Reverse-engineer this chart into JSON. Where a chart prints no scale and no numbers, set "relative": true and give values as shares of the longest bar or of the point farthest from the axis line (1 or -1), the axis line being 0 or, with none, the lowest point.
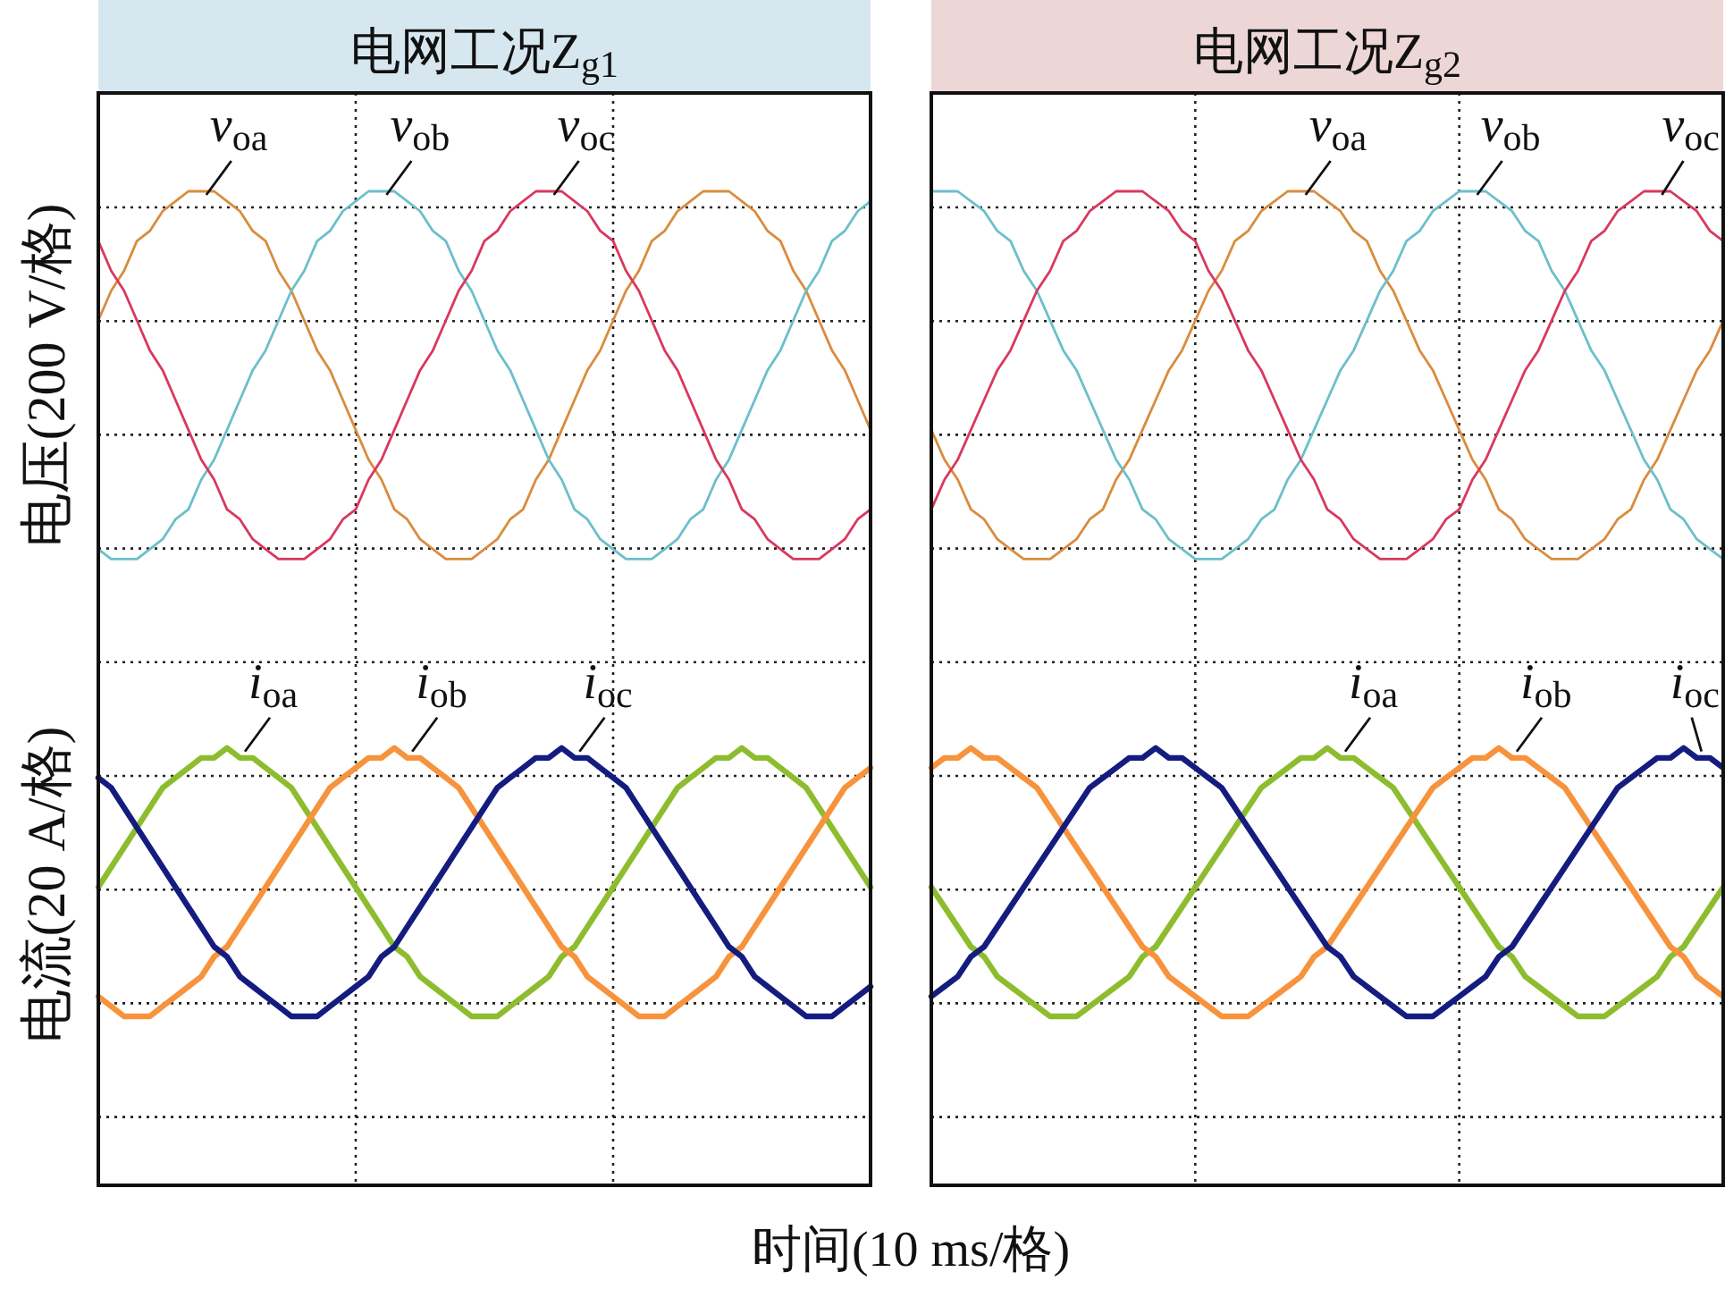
{
  "chart_data": [
    {
      "type": "line",
      "title": "电网工况Z$_{g1}$",
      "ylabel": "电压(200 V/格)",
      "xlabel": "时间(10 ms/格)",
      "annotations": [
        "电流(20 A/格)"
      ],
      "relative": true,
      "grid": true,
      "categories": [
        null,
        null,
        null,
        null,
        null,
        null,
        null,
        null,
        null,
        null,
        null,
        null,
        null,
        null,
        null,
        null,
        null,
        null,
        null,
        null,
        null,
        null,
        null,
        null,
        null,
        null,
        null,
        null,
        null,
        null,
        null,
        null,
        null,
        null,
        null,
        null,
        null,
        null,
        null,
        null,
        null,
        null,
        null,
        null,
        null,
        null,
        null,
        null,
        null,
        null,
        null,
        null,
        null,
        null,
        null,
        null,
        null,
        null,
        null,
        null,
        null
      ],
      "series": [
        {
          "name": "*v*$_{oa}$",
          "color": "#d98c3e",
          "values": [
            0.87,
            0.9,
            0.92,
            0.95,
            0.96,
            0.98,
            0.99,
            1,
            1,
            1,
            0.99,
            0.98,
            0.96,
            0.95,
            0.92,
            0.9,
            0.87,
            0.84,
            0.82,
            0.79,
            0.76,
            0.73,
            0.71,
            0.68,
            0.67,
            0.65,
            0.64,
            0.63,
            0.63,
            0.63,
            0.64,
            0.65,
            0.67,
            0.68,
            0.71,
            0.73,
            0.76,
            0.79,
            0.82,
            0.84,
            0.87,
            0.9,
            0.92,
            0.95,
            0.96,
            0.98,
            0.99,
            1,
            1,
            1,
            0.99,
            0.98,
            0.96,
            0.95,
            0.92,
            0.9,
            0.87,
            0.84,
            0.82,
            0.79,
            0.76
          ]
        },
        {
          "name": "*v*$_{ob}$",
          "color": "#6cbfcb",
          "values": [
            0.64,
            0.63,
            0.63,
            0.63,
            0.64,
            0.65,
            0.67,
            0.68,
            0.71,
            0.73,
            0.76,
            0.79,
            0.82,
            0.84,
            0.87,
            0.9,
            0.92,
            0.95,
            0.96,
            0.98,
            0.99,
            1,
            1,
            1,
            0.99,
            0.98,
            0.96,
            0.95,
            0.92,
            0.9,
            0.87,
            0.84,
            0.82,
            0.79,
            0.76,
            0.73,
            0.71,
            0.68,
            0.67,
            0.65,
            0.64,
            0.63,
            0.63,
            0.63,
            0.64,
            0.65,
            0.67,
            0.68,
            0.71,
            0.73,
            0.76,
            0.79,
            0.82,
            0.84,
            0.87,
            0.9,
            0.92,
            0.95,
            0.96,
            0.98,
            0.99
          ]
        },
        {
          "name": "*v*$_{oc}$",
          "color": "#d9385f",
          "values": [
            0.95,
            0.92,
            0.9,
            0.87,
            0.84,
            0.82,
            0.79,
            0.76,
            0.73,
            0.71,
            0.68,
            0.67,
            0.65,
            0.64,
            0.63,
            0.63,
            0.63,
            0.64,
            0.65,
            0.67,
            0.68,
            0.71,
            0.73,
            0.76,
            0.79,
            0.82,
            0.84,
            0.87,
            0.9,
            0.92,
            0.95,
            0.96,
            0.98,
            0.99,
            1,
            1,
            1,
            0.99,
            0.98,
            0.96,
            0.95,
            0.92,
            0.9,
            0.87,
            0.84,
            0.82,
            0.79,
            0.76,
            0.73,
            0.71,
            0.68,
            0.67,
            0.65,
            0.64,
            0.63,
            0.63,
            0.63,
            0.64,
            0.65,
            0.67,
            0.68
          ]
        },
        {
          "name": "*i*$_{oa}$",
          "color": "#8dbd2e",
          "values": [
            0.3,
            0.32,
            0.34,
            0.36,
            0.38,
            0.4,
            0.41,
            0.42,
            0.43,
            0.43,
            0.44,
            0.43,
            0.43,
            0.42,
            0.41,
            0.4,
            0.38,
            0.36,
            0.34,
            0.32,
            0.3,
            0.28,
            0.26,
            0.24,
            0.23,
            0.21,
            0.2,
            0.19,
            0.18,
            0.17,
            0.17,
            0.17,
            0.18,
            0.19,
            0.2,
            0.21,
            0.23,
            0.24,
            0.26,
            0.28,
            0.3,
            0.32,
            0.34,
            0.36,
            0.38,
            0.4,
            0.41,
            0.42,
            0.43,
            0.43,
            0.44,
            0.43,
            0.43,
            0.42,
            0.41,
            0.4,
            0.38,
            0.36,
            0.34,
            0.32,
            0.3
          ]
        },
        {
          "name": "*i*$_{ob}$",
          "color": "#f7933c",
          "values": [
            0.19,
            0.18,
            0.17,
            0.17,
            0.17,
            0.18,
            0.19,
            0.2,
            0.21,
            0.23,
            0.24,
            0.26,
            0.28,
            0.3,
            0.32,
            0.34,
            0.36,
            0.38,
            0.4,
            0.41,
            0.42,
            0.43,
            0.43,
            0.44,
            0.43,
            0.43,
            0.42,
            0.41,
            0.4,
            0.38,
            0.36,
            0.34,
            0.32,
            0.3,
            0.28,
            0.26,
            0.24,
            0.23,
            0.21,
            0.2,
            0.19,
            0.18,
            0.17,
            0.17,
            0.17,
            0.18,
            0.19,
            0.2,
            0.21,
            0.23,
            0.24,
            0.26,
            0.28,
            0.3,
            0.32,
            0.34,
            0.36,
            0.38,
            0.4,
            0.41,
            0.42
          ]
        },
        {
          "name": "*i*$_{oc}$",
          "color": "#151c80",
          "values": [
            0.41,
            0.4,
            0.38,
            0.36,
            0.34,
            0.32,
            0.3,
            0.28,
            0.26,
            0.24,
            0.23,
            0.21,
            0.2,
            0.19,
            0.18,
            0.17,
            0.17,
            0.17,
            0.18,
            0.19,
            0.2,
            0.21,
            0.23,
            0.24,
            0.26,
            0.28,
            0.3,
            0.32,
            0.34,
            0.36,
            0.38,
            0.4,
            0.41,
            0.42,
            0.43,
            0.43,
            0.44,
            0.43,
            0.43,
            0.42,
            0.41,
            0.4,
            0.38,
            0.36,
            0.34,
            0.32,
            0.3,
            0.28,
            0.26,
            0.24,
            0.23,
            0.21,
            0.2,
            0.19,
            0.18,
            0.17,
            0.17,
            0.17,
            0.18,
            0.19,
            0.2
          ]
        }
      ]
    },
    {
      "type": "line",
      "title": "电网工况Z$_{g2}$",
      "relative": true,
      "grid": true,
      "categories": [
        null,
        null,
        null,
        null,
        null,
        null,
        null,
        null,
        null,
        null,
        null,
        null,
        null,
        null,
        null,
        null,
        null,
        null,
        null,
        null,
        null,
        null,
        null,
        null,
        null,
        null,
        null,
        null,
        null,
        null,
        null,
        null,
        null,
        null,
        null,
        null,
        null,
        null,
        null,
        null,
        null,
        null,
        null,
        null,
        null,
        null,
        null,
        null,
        null,
        null,
        null,
        null,
        null,
        null,
        null,
        null,
        null,
        null,
        null,
        null,
        null
      ],
      "series": [
        {
          "name": "*v*$_{oa}$",
          "color": "#d98c3e",
          "values": [
            0.76,
            0.73,
            0.71,
            0.68,
            0.67,
            0.65,
            0.64,
            0.63,
            0.63,
            0.63,
            0.64,
            0.65,
            0.67,
            0.68,
            0.71,
            0.73,
            0.76,
            0.79,
            0.82,
            0.84,
            0.87,
            0.9,
            0.92,
            0.95,
            0.96,
            0.98,
            0.99,
            1,
            1,
            1,
            0.99,
            0.98,
            0.96,
            0.95,
            0.92,
            0.9,
            0.87,
            0.84,
            0.82,
            0.79,
            0.76,
            0.73,
            0.71,
            0.68,
            0.67,
            0.65,
            0.64,
            0.63,
            0.63,
            0.63,
            0.64,
            0.65,
            0.67,
            0.68,
            0.71,
            0.73,
            0.76,
            0.79,
            0.82,
            0.84,
            0.87
          ]
        },
        {
          "name": "*v*$_{ob}$",
          "color": "#6cbfcb",
          "values": [
            1,
            1,
            1,
            0.99,
            0.98,
            0.96,
            0.95,
            0.92,
            0.9,
            0.87,
            0.84,
            0.82,
            0.79,
            0.76,
            0.73,
            0.71,
            0.68,
            0.67,
            0.65,
            0.64,
            0.63,
            0.63,
            0.63,
            0.64,
            0.65,
            0.67,
            0.68,
            0.71,
            0.73,
            0.76,
            0.79,
            0.82,
            0.84,
            0.87,
            0.9,
            0.92,
            0.95,
            0.96,
            0.98,
            0.99,
            1,
            1,
            1,
            0.99,
            0.98,
            0.96,
            0.95,
            0.92,
            0.9,
            0.87,
            0.84,
            0.82,
            0.79,
            0.76,
            0.73,
            0.71,
            0.68,
            0.67,
            0.65,
            0.64,
            0.63
          ]
        },
        {
          "name": "*v*$_{oc}$",
          "color": "#d9385f",
          "values": [
            0.68,
            0.71,
            0.73,
            0.76,
            0.79,
            0.82,
            0.84,
            0.87,
            0.9,
            0.92,
            0.95,
            0.96,
            0.98,
            0.99,
            1,
            1,
            1,
            0.99,
            0.98,
            0.96,
            0.95,
            0.92,
            0.9,
            0.87,
            0.84,
            0.82,
            0.79,
            0.76,
            0.73,
            0.71,
            0.68,
            0.67,
            0.65,
            0.64,
            0.63,
            0.63,
            0.63,
            0.64,
            0.65,
            0.67,
            0.68,
            0.71,
            0.73,
            0.76,
            0.79,
            0.82,
            0.84,
            0.87,
            0.9,
            0.92,
            0.95,
            0.96,
            0.98,
            0.99,
            1,
            1,
            1,
            0.99,
            0.98,
            0.96,
            0.95
          ]
        },
        {
          "name": "*i*$_{oa}$",
          "color": "#8dbd2e",
          "values": [
            0.3,
            0.28,
            0.26,
            0.24,
            0.23,
            0.21,
            0.2,
            0.19,
            0.18,
            0.17,
            0.17,
            0.17,
            0.18,
            0.19,
            0.2,
            0.21,
            0.23,
            0.24,
            0.26,
            0.28,
            0.3,
            0.32,
            0.34,
            0.36,
            0.38,
            0.4,
            0.41,
            0.42,
            0.43,
            0.43,
            0.44,
            0.43,
            0.43,
            0.42,
            0.41,
            0.4,
            0.38,
            0.36,
            0.34,
            0.32,
            0.3,
            0.28,
            0.26,
            0.24,
            0.23,
            0.21,
            0.2,
            0.19,
            0.18,
            0.17,
            0.17,
            0.17,
            0.18,
            0.19,
            0.2,
            0.21,
            0.23,
            0.24,
            0.26,
            0.28,
            0.3
          ]
        },
        {
          "name": "*i*$_{ob}$",
          "color": "#f7933c",
          "values": [
            0.42,
            0.43,
            0.43,
            0.44,
            0.43,
            0.43,
            0.42,
            0.41,
            0.4,
            0.38,
            0.36,
            0.34,
            0.32,
            0.3,
            0.28,
            0.26,
            0.24,
            0.23,
            0.21,
            0.2,
            0.19,
            0.18,
            0.17,
            0.17,
            0.17,
            0.18,
            0.19,
            0.2,
            0.21,
            0.23,
            0.24,
            0.26,
            0.28,
            0.3,
            0.32,
            0.34,
            0.36,
            0.38,
            0.4,
            0.41,
            0.42,
            0.43,
            0.43,
            0.44,
            0.43,
            0.43,
            0.42,
            0.41,
            0.4,
            0.38,
            0.36,
            0.34,
            0.32,
            0.3,
            0.28,
            0.26,
            0.24,
            0.23,
            0.21,
            0.2,
            0.19
          ]
        },
        {
          "name": "*i*$_{oc}$",
          "color": "#151c80",
          "values": [
            0.19,
            0.2,
            0.21,
            0.23,
            0.24,
            0.26,
            0.28,
            0.3,
            0.32,
            0.34,
            0.36,
            0.38,
            0.4,
            0.41,
            0.42,
            0.43,
            0.43,
            0.44,
            0.43,
            0.43,
            0.42,
            0.41,
            0.4,
            0.38,
            0.36,
            0.34,
            0.32,
            0.3,
            0.28,
            0.26,
            0.24,
            0.23,
            0.21,
            0.2,
            0.19,
            0.18,
            0.17,
            0.17,
            0.17,
            0.18,
            0.19,
            0.2,
            0.21,
            0.23,
            0.24,
            0.26,
            0.28,
            0.3,
            0.32,
            0.34,
            0.36,
            0.38,
            0.4,
            0.41,
            0.42,
            0.43,
            0.43,
            0.44,
            0.43,
            0.43,
            0.42
          ]
        }
      ]
    }
  ]
}
